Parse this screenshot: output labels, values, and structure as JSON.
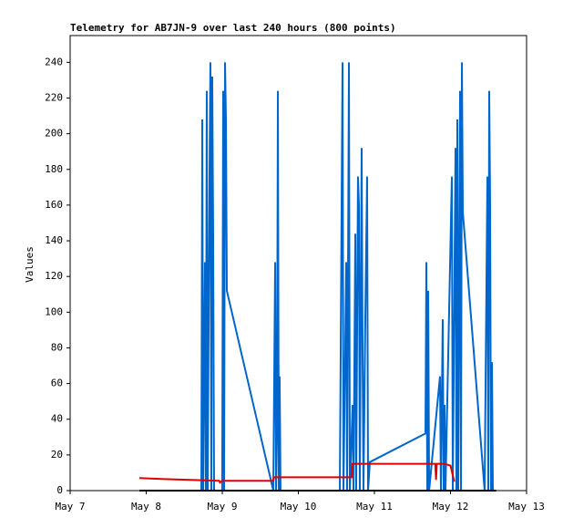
{
  "chart_data": {
    "type": "line",
    "title": "Telemetry for AB7JN-9 over last 240 hours (800 points)",
    "y_label": "Values",
    "xlim": [
      0,
      6
    ],
    "xticks": [
      {
        "value": 0,
        "label": "May 7"
      },
      {
        "value": 1,
        "label": "May 8"
      },
      {
        "value": 2,
        "label": "May 9"
      },
      {
        "value": 3,
        "label": "May 10"
      },
      {
        "value": 4,
        "label": "May 11"
      },
      {
        "value": 5,
        "label": "May 12"
      },
      {
        "value": 6,
        "label": "May 13"
      }
    ],
    "ylim": [
      0,
      255
    ],
    "yticks": [
      0,
      20,
      40,
      60,
      80,
      100,
      120,
      140,
      160,
      180,
      200,
      220,
      240
    ],
    "series": [
      {
        "color": "#0066cc",
        "x": [
          1.725,
          1.737,
          1.749,
          1.76,
          1.772,
          1.784,
          1.796,
          1.808,
          1.832,
          1.844,
          1.856,
          1.868,
          1.88,
          1.892,
          1.999,
          2.012,
          2.024,
          2.036,
          2.048,
          2.06,
          2.671,
          2.695,
          2.707,
          2.719,
          2.731,
          2.743,
          2.754,
          2.766,
          3.545,
          3.557,
          3.569,
          3.581,
          3.593,
          3.605,
          3.629,
          3.641,
          3.665,
          3.677,
          3.713,
          3.725,
          3.749,
          3.76,
          3.784,
          3.796,
          3.808,
          3.832,
          3.844,
          3.856,
          3.88,
          3.904,
          3.916,
          3.94,
          4.671,
          4.683,
          4.695,
          4.707,
          4.719,
          4.862,
          4.874,
          4.898,
          4.91,
          4.922,
          4.934,
          5.018,
          5.03,
          5.066,
          5.078,
          5.09,
          5.102,
          5.126,
          5.138,
          5.15,
          5.162,
          5.449,
          5.485,
          5.497,
          5.509,
          5.521,
          5.533,
          5.545,
          5.557
        ],
        "values": [
          0,
          208,
          0,
          64,
          128,
          0,
          224,
          0,
          176,
          240,
          0,
          232,
          144,
          0,
          0,
          224,
          0,
          240,
          208,
          112,
          0,
          128,
          0,
          32,
          224,
          0,
          64,
          0,
          0,
          80,
          160,
          240,
          0,
          40,
          128,
          0,
          240,
          0,
          48,
          0,
          144,
          0,
          176,
          160,
          0,
          192,
          80,
          0,
          96,
          176,
          0,
          16,
          32,
          128,
          0,
          112,
          0,
          64,
          0,
          96,
          0,
          48,
          0,
          176,
          0,
          192,
          0,
          208,
          0,
          224,
          0,
          240,
          156,
          0,
          176,
          0,
          224,
          160,
          0,
          72,
          0
        ]
      },
      {
        "color": "#e00000",
        "x": [
          0.91,
          1.2,
          1.96,
          1.97,
          2.0,
          2.67,
          2.68,
          3.7,
          3.71,
          4.8,
          4.81,
          4.82,
          4.92,
          5.0,
          5.05
        ],
        "values": [
          7,
          6.5,
          5.5,
          4.5,
          5.5,
          5.5,
          7.5,
          7.5,
          15,
          15,
          6,
          15,
          15,
          14,
          5
        ]
      },
      {
        "color": "#000000",
        "x": [
          0.91,
          5.6
        ],
        "values": [
          0,
          0
        ]
      }
    ]
  }
}
